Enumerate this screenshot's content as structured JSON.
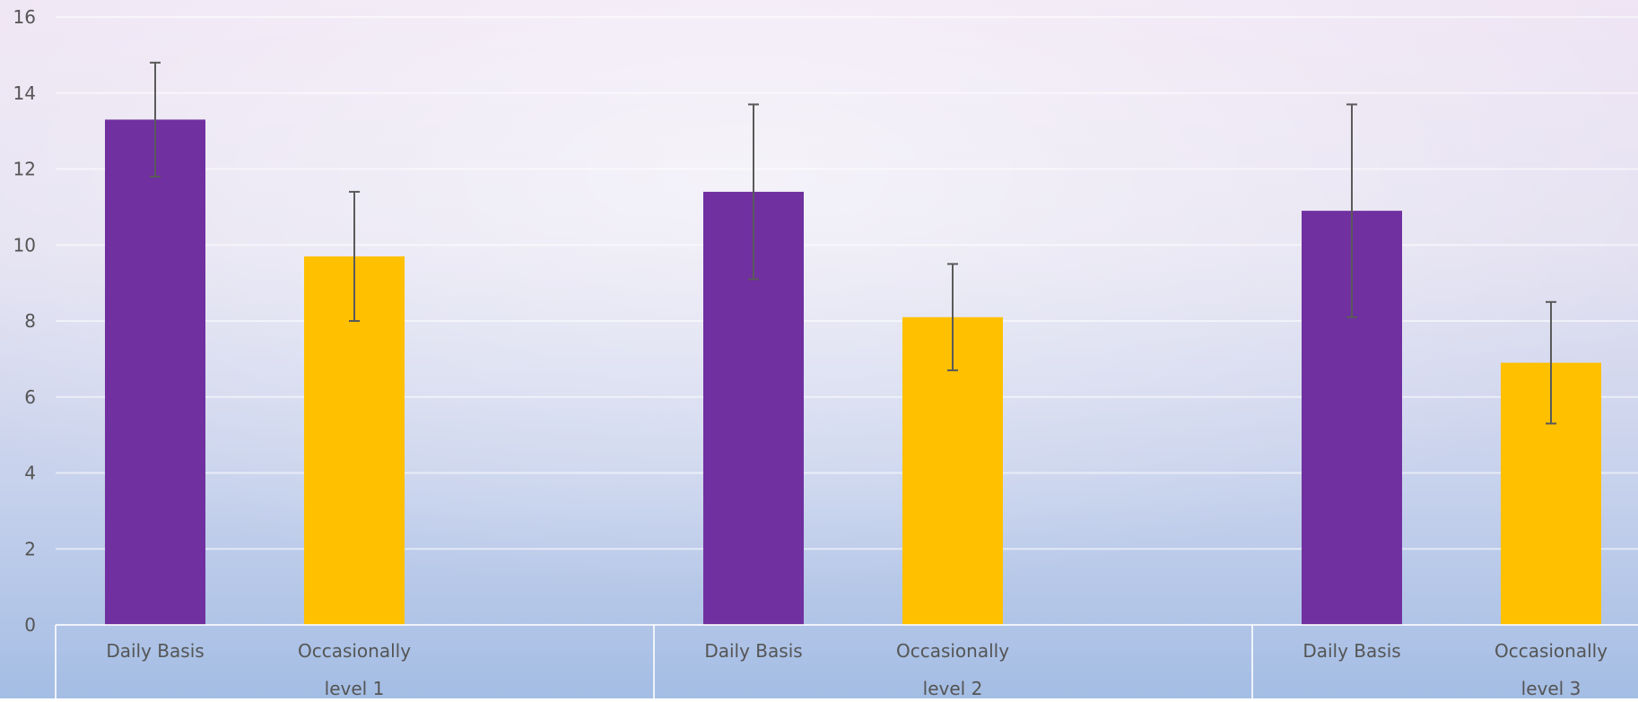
{
  "chart_data": {
    "type": "bar",
    "groups": [
      {
        "label": "level 1",
        "categories": [
          "Daily Basis",
          "Occasionally"
        ]
      },
      {
        "label": "level 2",
        "categories": [
          "Daily Basis",
          "Occasionally"
        ]
      },
      {
        "label": "level 3",
        "categories": [
          "Daily Basis",
          "Occasionally"
        ]
      }
    ],
    "bars": [
      {
        "group": "level 1",
        "category": "Daily Basis",
        "value": 13.3,
        "err_low": 11.8,
        "err_high": 14.8
      },
      {
        "group": "level 1",
        "category": "Occasionally",
        "value": 9.7,
        "err_low": 8.0,
        "err_high": 11.4
      },
      {
        "group": "level 2",
        "category": "Daily Basis",
        "value": 11.4,
        "err_low": 9.1,
        "err_high": 13.7
      },
      {
        "group": "level 2",
        "category": "Occasionally",
        "value": 8.1,
        "err_low": 6.7,
        "err_high": 9.5
      },
      {
        "group": "level 3",
        "category": "Daily Basis",
        "value": 10.9,
        "err_low": 8.1,
        "err_high": 13.7
      },
      {
        "group": "level 3",
        "category": "Occasionally",
        "value": 6.9,
        "err_low": 5.3,
        "err_high": 8.5
      }
    ],
    "colors": {
      "Daily Basis": "#7030A0",
      "Occasionally": "#FFC000"
    },
    "y_ticks": [
      0,
      2,
      4,
      6,
      8,
      10,
      12,
      14,
      16
    ],
    "ylim": [
      0,
      16
    ],
    "title": "",
    "xlabel": "",
    "ylabel": "",
    "grid": true,
    "legend": "none"
  }
}
